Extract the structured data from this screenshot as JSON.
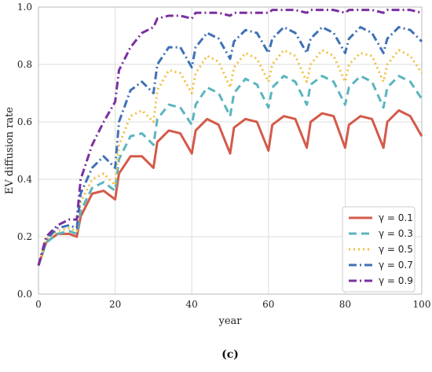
{
  "chart_data": {
    "type": "line",
    "xlabel": "year",
    "ylabel": "EV diffusion rate",
    "caption": "(c)",
    "xlim": [
      0,
      100
    ],
    "ylim": [
      0.0,
      1.0
    ],
    "xticks": [
      "0",
      "20",
      "40",
      "60",
      "80",
      "100"
    ],
    "yticks": [
      "0.0",
      "0.2",
      "0.4",
      "0.6",
      "0.8",
      "1.0"
    ],
    "grid": true,
    "legend_position": "bottom-right",
    "x": [
      0,
      2,
      5,
      8,
      10,
      11,
      14,
      17,
      20,
      21,
      24,
      27,
      30,
      31,
      34,
      37,
      40,
      41,
      44,
      47,
      50,
      51,
      54,
      57,
      60,
      61,
      64,
      67,
      70,
      71,
      74,
      77,
      80,
      81,
      84,
      87,
      90,
      91,
      94,
      97,
      100
    ],
    "series": [
      {
        "name": "γ = 0.1",
        "color": "#d45a4a",
        "dash": "solid",
        "values": [
          0.1,
          0.18,
          0.21,
          0.21,
          0.2,
          0.27,
          0.35,
          0.36,
          0.33,
          0.42,
          0.48,
          0.48,
          0.44,
          0.53,
          0.57,
          0.56,
          0.49,
          0.57,
          0.61,
          0.59,
          0.49,
          0.58,
          0.61,
          0.6,
          0.5,
          0.59,
          0.62,
          0.61,
          0.51,
          0.6,
          0.63,
          0.62,
          0.51,
          0.59,
          0.62,
          0.61,
          0.51,
          0.6,
          0.64,
          0.62,
          0.55
        ]
      },
      {
        "name": "γ = 0.3",
        "color": "#5bb5bf",
        "dash": "dashed",
        "values": [
          0.1,
          0.18,
          0.21,
          0.22,
          0.21,
          0.29,
          0.37,
          0.39,
          0.36,
          0.47,
          0.55,
          0.56,
          0.52,
          0.61,
          0.66,
          0.65,
          0.59,
          0.66,
          0.72,
          0.7,
          0.62,
          0.7,
          0.75,
          0.73,
          0.65,
          0.72,
          0.76,
          0.74,
          0.66,
          0.73,
          0.76,
          0.74,
          0.66,
          0.72,
          0.76,
          0.74,
          0.65,
          0.72,
          0.76,
          0.74,
          0.68
        ]
      },
      {
        "name": "γ = 0.5",
        "color": "#f0c040",
        "dash": "dotted",
        "values": [
          0.1,
          0.19,
          0.22,
          0.23,
          0.22,
          0.32,
          0.4,
          0.42,
          0.38,
          0.52,
          0.62,
          0.64,
          0.6,
          0.71,
          0.78,
          0.77,
          0.7,
          0.77,
          0.83,
          0.81,
          0.72,
          0.79,
          0.84,
          0.82,
          0.74,
          0.8,
          0.85,
          0.83,
          0.74,
          0.8,
          0.85,
          0.83,
          0.74,
          0.8,
          0.84,
          0.83,
          0.74,
          0.8,
          0.85,
          0.83,
          0.77
        ]
      },
      {
        "name": "γ = 0.7",
        "color": "#3f72b5",
        "dash": "dashdot",
        "values": [
          0.1,
          0.19,
          0.23,
          0.24,
          0.23,
          0.35,
          0.44,
          0.48,
          0.44,
          0.6,
          0.71,
          0.74,
          0.7,
          0.8,
          0.86,
          0.86,
          0.79,
          0.86,
          0.91,
          0.89,
          0.82,
          0.88,
          0.92,
          0.91,
          0.84,
          0.89,
          0.93,
          0.91,
          0.84,
          0.89,
          0.93,
          0.91,
          0.84,
          0.89,
          0.93,
          0.91,
          0.84,
          0.89,
          0.93,
          0.92,
          0.88
        ]
      },
      {
        "name": "γ = 0.9",
        "color": "#7b2fa0",
        "dash": "dashdot",
        "values": [
          0.1,
          0.2,
          0.24,
          0.26,
          0.26,
          0.4,
          0.52,
          0.6,
          0.67,
          0.78,
          0.86,
          0.91,
          0.93,
          0.96,
          0.97,
          0.97,
          0.96,
          0.98,
          0.98,
          0.98,
          0.97,
          0.98,
          0.98,
          0.98,
          0.98,
          0.99,
          0.99,
          0.99,
          0.98,
          0.99,
          0.99,
          0.99,
          0.98,
          0.99,
          0.99,
          0.99,
          0.98,
          0.99,
          0.99,
          0.99,
          0.98
        ]
      }
    ]
  }
}
